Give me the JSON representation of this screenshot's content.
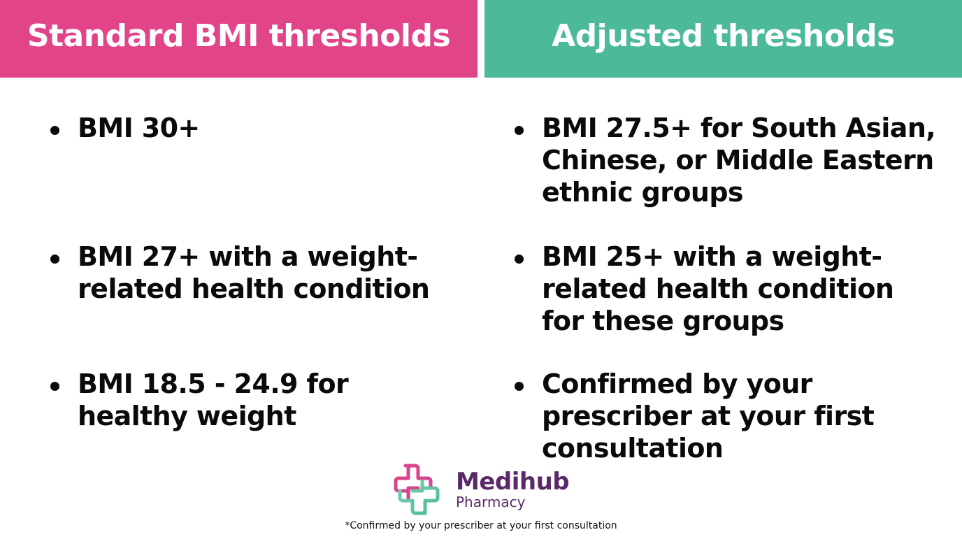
{
  "colors": {
    "left_header": "#e2448a",
    "right_header": "#4cb99b",
    "brand": "#5a2a68"
  },
  "left": {
    "title": "Standard BMI thresholds",
    "bullets": [
      "BMI 30+",
      "BMI 27+ with a weight-related health condition",
      "BMI 18.5 - 24.9 for healthy weight"
    ]
  },
  "right": {
    "title": "Adjusted thresholds",
    "bullets": [
      "BMI 27.5+ for South Asian, Chinese, or Middle Eastern ethnic groups",
      "BMI 25+ with a weight-related health condition for these groups",
      "Confirmed by your prescriber at your first consultation"
    ]
  },
  "logo": {
    "icon": "cross-logo-icon",
    "name": "Medihub",
    "subtitle": "Pharmacy"
  },
  "footnote": "*Confirmed by your prescriber at your first consultation"
}
